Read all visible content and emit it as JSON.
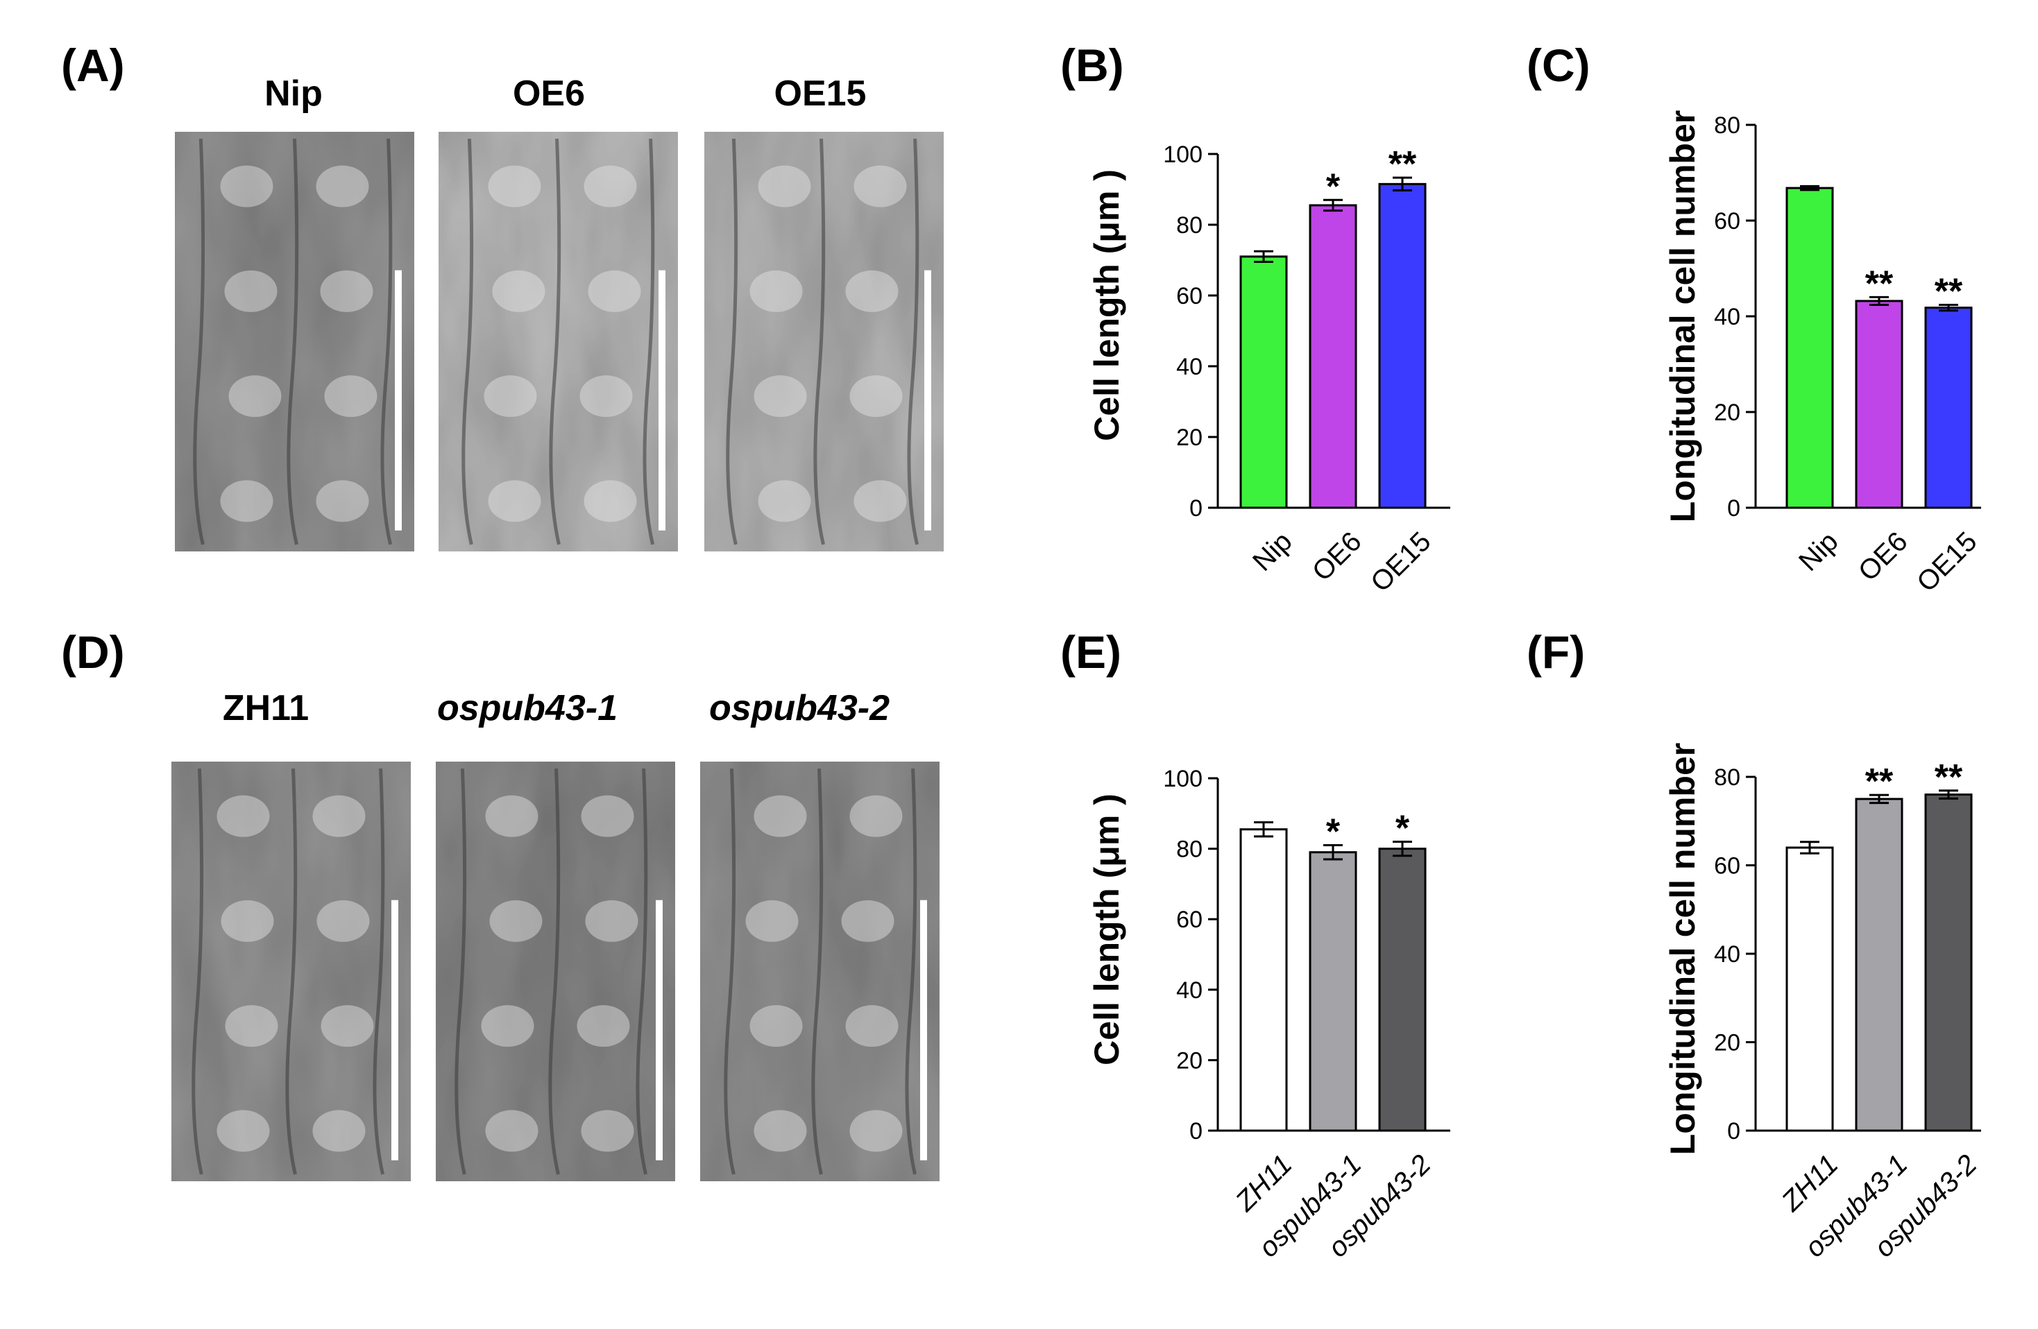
{
  "panels": {
    "A": {
      "label": "(A)",
      "images": [
        {
          "title": "Nip",
          "italic": false,
          "seed": 1
        },
        {
          "title": "OE6",
          "italic": false,
          "seed": 2
        },
        {
          "title": "OE15",
          "italic": false,
          "seed": 3
        }
      ]
    },
    "D": {
      "label": "(D)",
      "images": [
        {
          "title": "ZH11",
          "italic": false,
          "seed": 4
        },
        {
          "title": "ospub43-1",
          "italic": true,
          "seed": 5
        },
        {
          "title": "ospub43-2",
          "italic": true,
          "seed": 6
        }
      ]
    }
  },
  "chart_data": [
    {
      "panel": "B",
      "label": "(B)",
      "type": "bar",
      "categories": [
        "Nip",
        "OE6",
        "OE15"
      ],
      "italic_categories": false,
      "values": [
        71,
        85.5,
        91.5
      ],
      "errors": [
        1.5,
        1.5,
        1.8
      ],
      "significance": [
        "",
        "*",
        "**"
      ],
      "colors": [
        "#3df23d",
        "#c045e8",
        "#3b3bff"
      ],
      "ylabel": "Cell length (μm )",
      "ylim": [
        0,
        100
      ],
      "yticks": [
        0,
        20,
        40,
        60,
        80,
        100
      ]
    },
    {
      "panel": "C",
      "label": "(C)",
      "type": "bar",
      "categories": [
        "Nip",
        "OE6",
        "OE15"
      ],
      "italic_categories": false,
      "values": [
        66.8,
        43.2,
        41.8
      ],
      "errors": [
        0.4,
        0.8,
        0.6
      ],
      "significance": [
        "",
        "**",
        "**"
      ],
      "colors": [
        "#3df23d",
        "#c045e8",
        "#3b3bff"
      ],
      "ylabel": "Longitudinal cell number",
      "ylim": [
        0,
        80
      ],
      "yticks": [
        0,
        20,
        40,
        60,
        80
      ]
    },
    {
      "panel": "E",
      "label": "(E)",
      "type": "bar",
      "categories": [
        "ZH11",
        "ospub43-1",
        "ospub43-2"
      ],
      "italic_categories": true,
      "values": [
        85.5,
        79,
        80
      ],
      "errors": [
        2,
        2,
        2
      ],
      "significance": [
        "",
        "*",
        "*"
      ],
      "colors": [
        "#ffffff",
        "#a3a3a8",
        "#5a5a5c"
      ],
      "ylabel": "Cell length (μm )",
      "ylim": [
        0,
        100
      ],
      "yticks": [
        0,
        20,
        40,
        60,
        80,
        100
      ]
    },
    {
      "panel": "F",
      "label": "(F)",
      "type": "bar",
      "categories": [
        "ZH11",
        "ospub43-1",
        "ospub43-2"
      ],
      "italic_categories": true,
      "values": [
        64,
        75,
        76
      ],
      "errors": [
        1.3,
        0.9,
        0.9
      ],
      "significance": [
        "",
        "**",
        "**"
      ],
      "colors": [
        "#ffffff",
        "#a3a3a8",
        "#5a5a5c"
      ],
      "ylabel": "Longitudinal cell number",
      "ylim": [
        0,
        80
      ],
      "yticks": [
        0,
        20,
        40,
        60,
        80
      ]
    }
  ]
}
